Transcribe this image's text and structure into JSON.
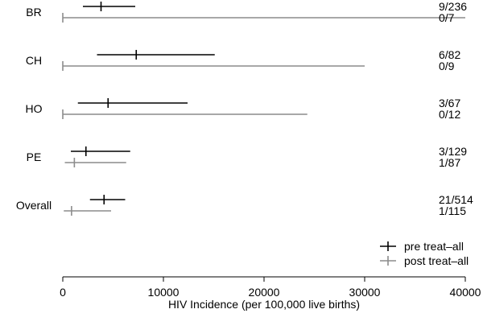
{
  "chart_data": {
    "type": "forest",
    "xlabel": "HIV Incidence (per 100,000 live births)",
    "xlim": [
      0,
      40000
    ],
    "xticks": [
      0,
      10000,
      20000,
      30000,
      40000
    ],
    "xtick_labels": [
      "0",
      "10000",
      "20000",
      "30000",
      "40000"
    ],
    "legend": {
      "placement": "bottom-right",
      "entries": [
        {
          "label": "pre treat–all",
          "color": "#000000"
        },
        {
          "label": "post treat–all",
          "color": "#8c8c8c"
        }
      ]
    },
    "colors": {
      "pre": "#000000",
      "post": "#8c8c8c"
    },
    "groups": [
      {
        "label": "BR",
        "pre": {
          "estimate": 3800,
          "lower": 2000,
          "upper": 7200,
          "fraction": "9/236"
        },
        "post": {
          "estimate": 0,
          "lower": 0,
          "upper": 40000,
          "fraction": "0/7"
        }
      },
      {
        "label": "CH",
        "pre": {
          "estimate": 7300,
          "lower": 3400,
          "upper": 15100,
          "fraction": "6/82"
        },
        "post": {
          "estimate": 0,
          "lower": 0,
          "upper": 30000,
          "fraction": "0/9"
        }
      },
      {
        "label": "HO",
        "pre": {
          "estimate": 4500,
          "lower": 1500,
          "upper": 12400,
          "fraction": "3/67"
        },
        "post": {
          "estimate": 0,
          "lower": 0,
          "upper": 24300,
          "fraction": "0/12"
        }
      },
      {
        "label": "PE",
        "pre": {
          "estimate": 2300,
          "lower": 800,
          "upper": 6700,
          "fraction": "3/129"
        },
        "post": {
          "estimate": 1150,
          "lower": 200,
          "upper": 6300,
          "fraction": "1/87"
        }
      },
      {
        "label": "Overall",
        "pre": {
          "estimate": 4100,
          "lower": 2700,
          "upper": 6200,
          "fraction": "21/514"
        },
        "post": {
          "estimate": 870,
          "lower": 100,
          "upper": 4800,
          "fraction": "1/115"
        }
      }
    ]
  }
}
